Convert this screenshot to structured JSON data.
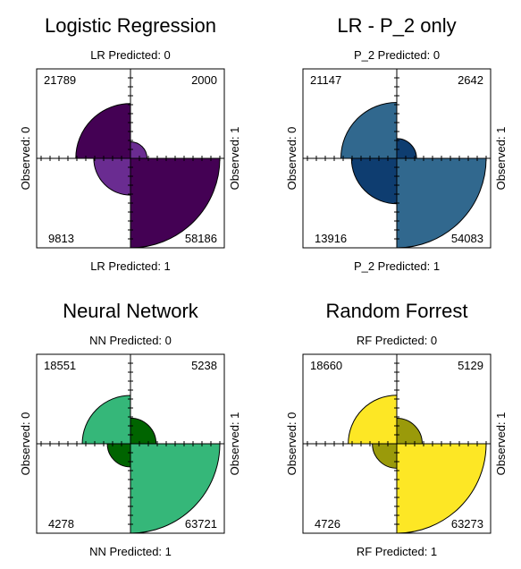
{
  "chart_data": [
    {
      "type": "fourfold",
      "title": "Logistic Regression",
      "top_label": "LR Predicted: 0",
      "bottom_label": "LR Predicted: 1",
      "left_label": "Observed: 0",
      "right_label": "Observed: 1",
      "colors": {
        "dark": "#440154",
        "light": "#6A2C91"
      },
      "cells": {
        "top_left": "21789",
        "top_right": "2000",
        "bottom_left": "9813",
        "bottom_right": "58186"
      },
      "values": {
        "top_left": 21789,
        "top_right": 2000,
        "bottom_left": 9813,
        "bottom_right": 58186
      }
    },
    {
      "type": "fourfold",
      "title": "LR - P_2 only",
      "top_label": "P_2 Predicted: 0",
      "bottom_label": "P_2 Predicted: 1",
      "left_label": "Observed: 0",
      "right_label": "Observed: 1",
      "colors": {
        "dark": "#31688E",
        "light": "#0E3D70"
      },
      "cells": {
        "top_left": "21147",
        "top_right": "2642",
        "bottom_left": "13916",
        "bottom_right": "54083"
      },
      "values": {
        "top_left": 21147,
        "top_right": 2642,
        "bottom_left": 13916,
        "bottom_right": 54083
      }
    },
    {
      "type": "fourfold",
      "title": "Neural Network",
      "top_label": "NN Predicted: 0",
      "bottom_label": "NN Predicted: 1",
      "left_label": "Observed: 0",
      "right_label": "Observed: 1",
      "colors": {
        "dark": "#35B779",
        "light": "#006400"
      },
      "cells": {
        "top_left": "18551",
        "top_right": "5238",
        "bottom_left": "4278",
        "bottom_right": "63721"
      },
      "values": {
        "top_left": 18551,
        "top_right": 5238,
        "bottom_left": 4278,
        "bottom_right": 63721
      }
    },
    {
      "type": "fourfold",
      "title": "Random Forrest",
      "top_label": "RF Predicted: 0",
      "bottom_label": "RF Predicted: 1",
      "left_label": "Observed: 0",
      "right_label": "Observed: 1",
      "colors": {
        "dark": "#FDE725",
        "light": "#9A9A0A"
      },
      "cells": {
        "top_left": "18660",
        "top_right": "5129",
        "bottom_left": "4726",
        "bottom_right": "63273"
      },
      "values": {
        "top_left": 18660,
        "top_right": 5129,
        "bottom_left": 4726,
        "bottom_right": 63273
      }
    }
  ]
}
